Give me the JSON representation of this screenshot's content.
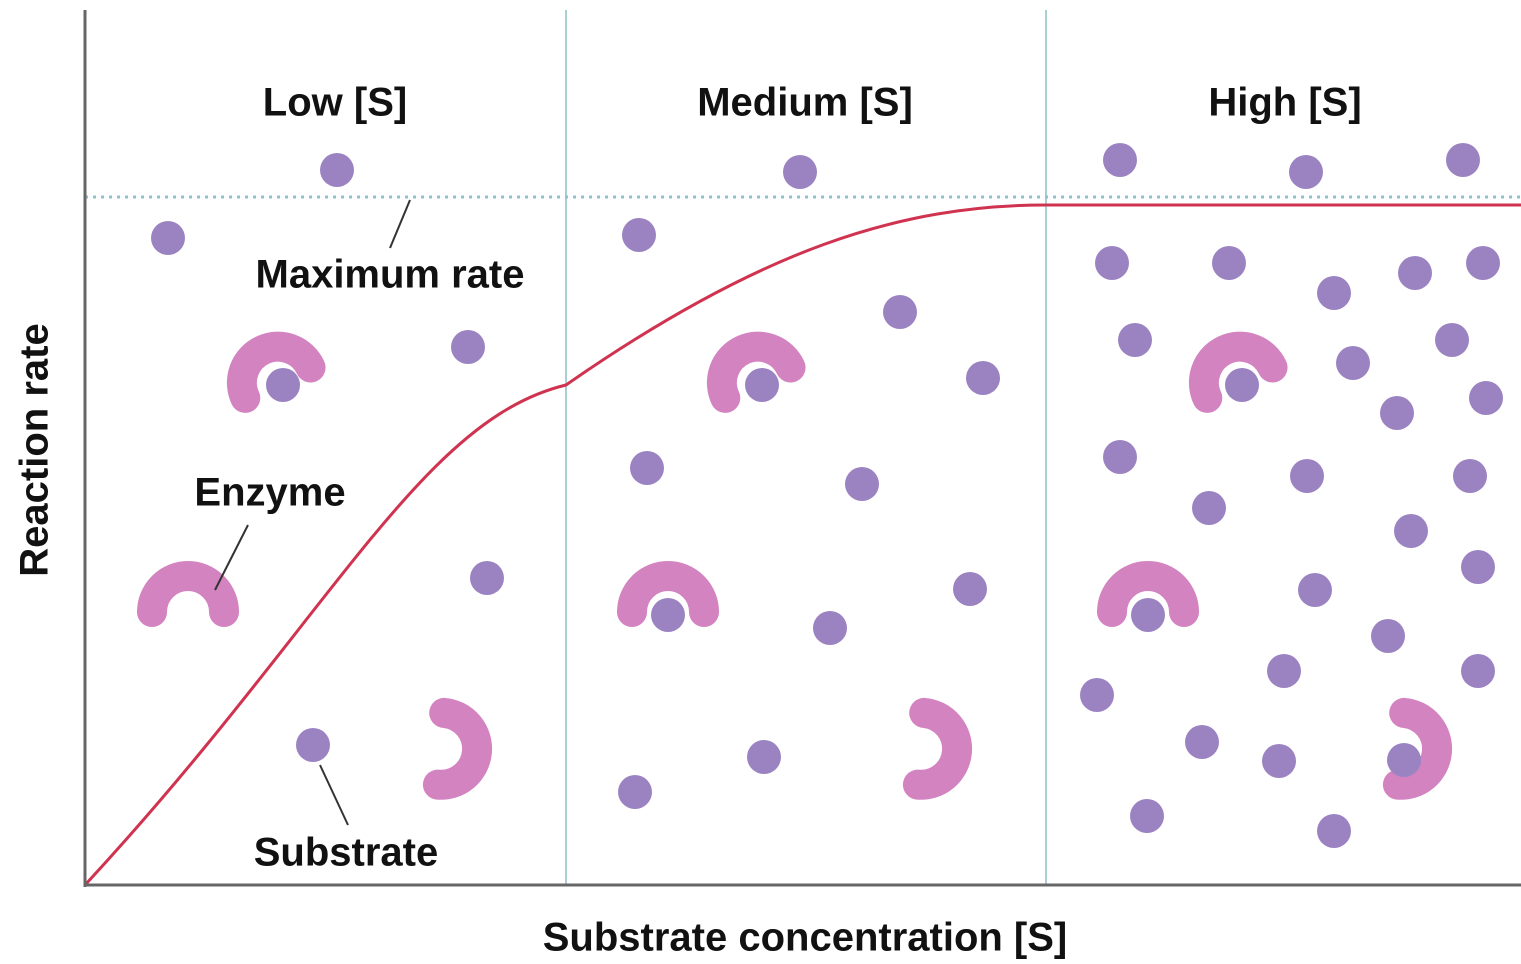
{
  "panels": [
    {
      "label": "Low [S]"
    },
    {
      "label": "Medium [S]"
    },
    {
      "label": "High [S]"
    }
  ],
  "callouts": {
    "maximum_rate": "Maximum rate",
    "enzyme": "Enzyme",
    "substrate": "Substrate"
  },
  "axes": {
    "y_label": "Reaction rate",
    "x_label": "Substrate concentration [S]"
  }
}
